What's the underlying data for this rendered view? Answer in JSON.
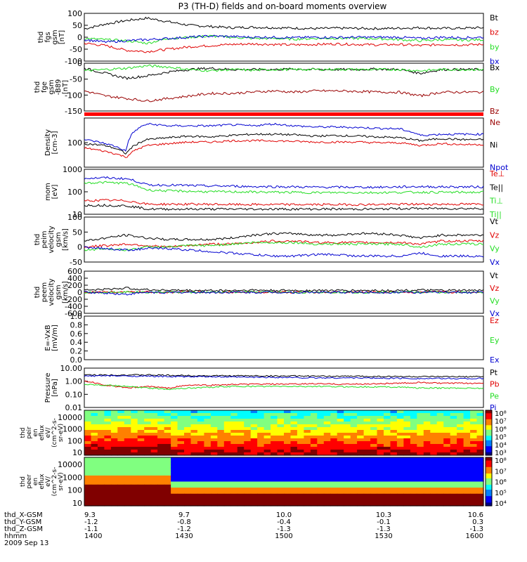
{
  "chart_data": {
    "type": "line",
    "title": "P3 (TH-D) fields and on-board moments overview",
    "colors": {
      "black": "#000000",
      "red": "#e00000",
      "green": "#22dd22",
      "blue": "#0000d0",
      "darkred": "#990000"
    },
    "panels": [
      {
        "id": "fgs",
        "ylabel": [
          "thd",
          "fgs",
          "gsm",
          "[nT]"
        ],
        "ylim": [
          -100,
          100
        ],
        "yticks": [
          "100",
          "50",
          "0",
          "-50",
          "-100"
        ],
        "legend": [
          {
            "name": "Bt",
            "color": "black"
          },
          {
            "name": "bz",
            "color": "red"
          },
          {
            "name": "by",
            "color": "green"
          },
          {
            "name": "bx",
            "color": "blue"
          }
        ],
        "series": [
          {
            "name": "Bt",
            "color": "black",
            "values": [
              35,
              55,
              70,
              80,
              65,
              50,
              45,
              40,
              42,
              40,
              38,
              36,
              38,
              37,
              36,
              38,
              40,
              37,
              38,
              40
            ]
          },
          {
            "name": "bz",
            "color": "red",
            "values": [
              -25,
              -35,
              -55,
              -60,
              -50,
              -40,
              -35,
              -30,
              -28,
              -30,
              -32,
              -30,
              -28,
              -30,
              -32,
              -30,
              -35,
              -30,
              -32,
              -30
            ]
          },
          {
            "name": "by",
            "color": "green",
            "values": [
              -5,
              -10,
              -15,
              -25,
              -5,
              0,
              5,
              0,
              -5,
              -5,
              -8,
              -5,
              -4,
              -5,
              -6,
              -10,
              -15,
              -10,
              -12,
              -10
            ]
          },
          {
            "name": "bx",
            "color": "blue",
            "values": [
              -10,
              -20,
              -15,
              -10,
              -5,
              0,
              5,
              3,
              0,
              0,
              -2,
              0,
              -1,
              0,
              0,
              0,
              -5,
              0,
              -2,
              0
            ]
          }
        ]
      },
      {
        "id": "fge",
        "ylabel": [
          "thd",
          "fge",
          "gsm",
          "-B89",
          "[nT]"
        ],
        "ylim": [
          -170,
          20
        ],
        "yticks": [
          "0",
          "-50",
          "-100",
          "-150"
        ],
        "legend": [
          {
            "name": "Bx",
            "color": "black"
          },
          {
            "name": "By",
            "color": "green"
          },
          {
            "name": "Bz",
            "color": "darkred"
          }
        ],
        "series": [
          {
            "name": "Bx",
            "color": "black",
            "values": [
              0,
              -20,
              -40,
              -30,
              -15,
              -5,
              0,
              -5,
              -5,
              -5,
              -3,
              -5,
              -5,
              -5,
              -3,
              -5,
              -20,
              -5,
              -5,
              -5
            ]
          },
          {
            "name": "By",
            "color": "green",
            "values": [
              -10,
              -5,
              0,
              10,
              5,
              -5,
              -10,
              -5,
              -8,
              -5,
              -5,
              -5,
              -4,
              -5,
              -5,
              -5,
              -10,
              -5,
              -5,
              -5
            ]
          },
          {
            "name": "Bz",
            "color": "darkred",
            "values": [
              -90,
              -110,
              -120,
              -130,
              -120,
              -110,
              -100,
              -100,
              -95,
              -90,
              -95,
              -90,
              -90,
              -92,
              -95,
              -95,
              -110,
              -95,
              -95,
              -95
            ]
          }
        ]
      },
      {
        "id": "density",
        "ylabel": [
          "Density",
          "[cm-3]"
        ],
        "ylim": [
          0.5,
          3
        ],
        "ylog": true,
        "yticks": [
          "100"
        ],
        "legend": [
          {
            "name": "Ne",
            "color": "darkred"
          },
          {
            "name": "Ni",
            "color": "black"
          },
          {
            "name": "Npot",
            "color": "blue"
          }
        ],
        "series": [
          {
            "name": "Ni",
            "color": "black",
            "values": [
              50,
              40,
              15,
              80,
              100,
              120,
              110,
              130,
              150,
              150,
              140,
              120,
              130,
              120,
              110,
              100,
              70,
              90,
              80,
              80
            ]
          },
          {
            "name": "Ne",
            "color": "red",
            "values": [
              30,
              20,
              10,
              40,
              50,
              60,
              60,
              70,
              70,
              70,
              65,
              60,
              60,
              60,
              55,
              55,
              40,
              50,
              45,
              45
            ]
          },
          {
            "name": "Npot",
            "color": "blue",
            "values": [
              80,
              50,
              20,
              500,
              400,
              400,
              400,
              450,
              400,
              500,
              400,
              350,
              350,
              330,
              300,
              280,
              130,
              150,
              150,
              150
            ]
          }
        ]
      },
      {
        "id": "temp",
        "ylabel": [
          "mom",
          "[eV]"
        ],
        "ylim": [
          1,
          3
        ],
        "ylog": true,
        "yticks": [
          "1000",
          "100",
          "10"
        ],
        "legend": [
          {
            "name": "Te⊥",
            "color": "red"
          },
          {
            "name": "Te||",
            "color": "black"
          },
          {
            "name": "Ti⊥",
            "color": "green"
          },
          {
            "name": "Ti||",
            "color": "green"
          }
        ],
        "series": [
          {
            "name": "Ti",
            "color": "blue",
            "values": [
              400,
              420,
              380,
              200,
              200,
              190,
              180,
              180,
              170,
              170,
              165,
              160,
              160,
              160,
              160,
              165,
              170,
              165,
              165,
              165
            ]
          },
          {
            "name": "Ti2",
            "color": "green",
            "values": [
              250,
              260,
              240,
              120,
              110,
              105,
              100,
              100,
              98,
              96,
              94,
              92,
              92,
              92,
              92,
              94,
              96,
              95,
              95,
              95
            ]
          },
          {
            "name": "Te",
            "color": "red",
            "values": [
              40,
              42,
              40,
              28,
              28,
              28,
              28,
              27,
              27,
              27,
              27,
              27,
              27,
              27,
              27,
              28,
              28,
              28,
              28,
              28
            ]
          },
          {
            "name": "Te2",
            "color": "black",
            "values": [
              25,
              25,
              24,
              17,
              17,
              17,
              17,
              17,
              17,
              17,
              17,
              17,
              17,
              17,
              17,
              18,
              18,
              18,
              18,
              18
            ]
          }
        ]
      },
      {
        "id": "peimvel",
        "ylabel": [
          "thd",
          "peim",
          "velocity",
          "gsm",
          "[km/s]"
        ],
        "ylim": [
          -50,
          100
        ],
        "yticks": [
          "100",
          "50",
          "0",
          "-50"
        ],
        "legend": [
          {
            "name": "Vt",
            "color": "black"
          },
          {
            "name": "Vz",
            "color": "red"
          },
          {
            "name": "Vy",
            "color": "green"
          },
          {
            "name": "Vx",
            "color": "blue"
          }
        ],
        "series": [
          {
            "name": "Vt",
            "color": "black",
            "values": [
              20,
              30,
              40,
              30,
              25,
              25,
              25,
              30,
              40,
              45,
              45,
              40,
              40,
              45,
              45,
              40,
              30,
              40,
              40,
              40
            ]
          },
          {
            "name": "Vz",
            "color": "red",
            "values": [
              0,
              5,
              10,
              5,
              0,
              5,
              10,
              10,
              15,
              20,
              20,
              15,
              15,
              15,
              15,
              15,
              10,
              20,
              20,
              20
            ]
          },
          {
            "name": "Vy",
            "color": "green",
            "values": [
              -10,
              -5,
              -10,
              0,
              0,
              5,
              5,
              10,
              15,
              15,
              15,
              10,
              10,
              10,
              10,
              10,
              0,
              10,
              10,
              10
            ]
          },
          {
            "name": "Vx",
            "color": "blue",
            "values": [
              0,
              -5,
              -10,
              -5,
              -5,
              -10,
              -15,
              -20,
              -25,
              -30,
              -30,
              -25,
              -25,
              -30,
              -30,
              -30,
              -20,
              -30,
              -30,
              -30
            ]
          }
        ]
      },
      {
        "id": "peemvel",
        "ylabel": [
          "thd",
          "peem",
          "velocity",
          "gsm",
          "[km/s]"
        ],
        "ylim": [
          -600,
          600
        ],
        "yticks": [
          "600",
          "400",
          "200",
          "0",
          "-200",
          "-400",
          "-600"
        ],
        "legend": [
          {
            "name": "Vt",
            "color": "black"
          },
          {
            "name": "Vz",
            "color": "red"
          },
          {
            "name": "Vy",
            "color": "green"
          },
          {
            "name": "Vx",
            "color": "blue"
          }
        ],
        "series": [
          {
            "name": "Vt",
            "color": "black",
            "values": [
              60,
              80,
              120,
              70,
              60,
              50,
              50,
              50,
              60,
              50,
              50,
              50,
              50,
              50,
              50,
              50,
              60,
              50,
              50,
              50
            ]
          },
          {
            "name": "Vz",
            "color": "red",
            "values": [
              0,
              10,
              0,
              5,
              0,
              5,
              0,
              5,
              0,
              5,
              0,
              5,
              0,
              5,
              0,
              5,
              0,
              5,
              0,
              5
            ]
          },
          {
            "name": "Vy",
            "color": "green",
            "values": [
              0,
              -5,
              10,
              0,
              5,
              0,
              -5,
              0,
              5,
              0,
              -5,
              0,
              5,
              0,
              -5,
              0,
              5,
              0,
              -5,
              0
            ]
          },
          {
            "name": "Vx",
            "color": "blue",
            "values": [
              0,
              -20,
              -60,
              0,
              -10,
              0,
              -5,
              0,
              -5,
              0,
              -5,
              0,
              -5,
              0,
              -5,
              0,
              -5,
              0,
              -5,
              0
            ]
          }
        ]
      },
      {
        "id": "exb",
        "ylabel": [
          "E=-VxB",
          "[mV/m]"
        ],
        "ylim": [
          0,
          1
        ],
        "yticks": [
          "1.0",
          "0.8",
          "0.6",
          "0.4",
          "0.2",
          "0.0"
        ],
        "legend": [
          {
            "name": "Ez",
            "color": "red"
          },
          {
            "name": "Ey",
            "color": "green"
          },
          {
            "name": "Ex",
            "color": "blue"
          }
        ],
        "series": []
      },
      {
        "id": "pressure",
        "ylabel": [
          "Pressure",
          "[nPa]"
        ],
        "ylim": [
          -2,
          1
        ],
        "ylog": true,
        "yticks": [
          "10.00",
          "1.00",
          "0.10",
          "0.01"
        ],
        "legend": [
          {
            "name": "Pt",
            "color": "black"
          },
          {
            "name": "Pb",
            "color": "red"
          },
          {
            "name": "Pe",
            "color": "green"
          },
          {
            "name": "Pi",
            "color": "blue"
          }
        ],
        "series": [
          {
            "name": "Pt",
            "color": "black",
            "values": [
              3,
              3,
              3,
              3,
              2.8,
              2.7,
              2.6,
              2.6,
              2.6,
              2.5,
              2.5,
              2.4,
              2.4,
              2.4,
              2.3,
              2.3,
              2.2,
              2.2,
              2.2,
              2.2
            ]
          },
          {
            "name": "Pi",
            "color": "blue",
            "values": [
              2.5,
              2.6,
              2.5,
              2.4,
              2.3,
              2.2,
              2.2,
              2.1,
              2,
              2,
              1.9,
              1.8,
              1.8,
              1.8,
              1.7,
              1.7,
              1.6,
              1.6,
              1.6,
              1.6
            ]
          },
          {
            "name": "Pb",
            "color": "red",
            "values": [
              1,
              0.5,
              0.3,
              0.4,
              0.3,
              0.5,
              0.5,
              0.55,
              0.6,
              0.6,
              0.6,
              0.65,
              0.6,
              0.6,
              0.65,
              0.7,
              0.8,
              0.7,
              0.7,
              0.7
            ]
          },
          {
            "name": "Pe",
            "color": "green",
            "values": [
              0.6,
              0.5,
              0.4,
              0.3,
              0.25,
              0.3,
              0.35,
              0.4,
              0.4,
              0.4,
              0.4,
              0.4,
              0.38,
              0.38,
              0.37,
              0.36,
              0.3,
              0.3,
              0.3,
              0.3
            ]
          }
        ]
      }
    ],
    "spectrograms": [
      {
        "id": "peir",
        "ylabel": [
          "thd",
          "peir",
          "en",
          "eflux",
          "eV/",
          "(cm^2-s-",
          "sr-eV)"
        ],
        "yticks": [
          "10000",
          "1000",
          "100",
          "10"
        ],
        "colorbar": [
          "10⁸",
          "10⁷",
          "10⁶",
          "10⁵",
          "10⁴",
          "10³"
        ]
      },
      {
        "id": "peer",
        "ylabel": [
          "thd",
          "peer",
          "en",
          "eflux",
          "eV/",
          "(cm^2-s-",
          "sr-eV)"
        ],
        "yticks": [
          "10000",
          "1000",
          "100",
          "10"
        ],
        "colorbar": [
          "10⁸",
          "10⁷",
          "10⁶",
          "10⁵",
          "10⁴"
        ]
      }
    ],
    "xaxis": {
      "labels": [
        "thd_X-GSM",
        "thd_Y-GSM",
        "thd_Z-GSM",
        "hhmm",
        "2009 Sep 13"
      ],
      "rows": [
        [
          "9.3",
          "9.7",
          "10.0",
          "10.3",
          "10.6"
        ],
        [
          "-1.2",
          "-0.8",
          "-0.4",
          "-0.1",
          "0.3"
        ],
        [
          "-1.1",
          "-1.2",
          "-1.3",
          "-1.3",
          "-1.3"
        ],
        [
          "1400",
          "1430",
          "1500",
          "1530",
          "1600"
        ]
      ]
    }
  }
}
